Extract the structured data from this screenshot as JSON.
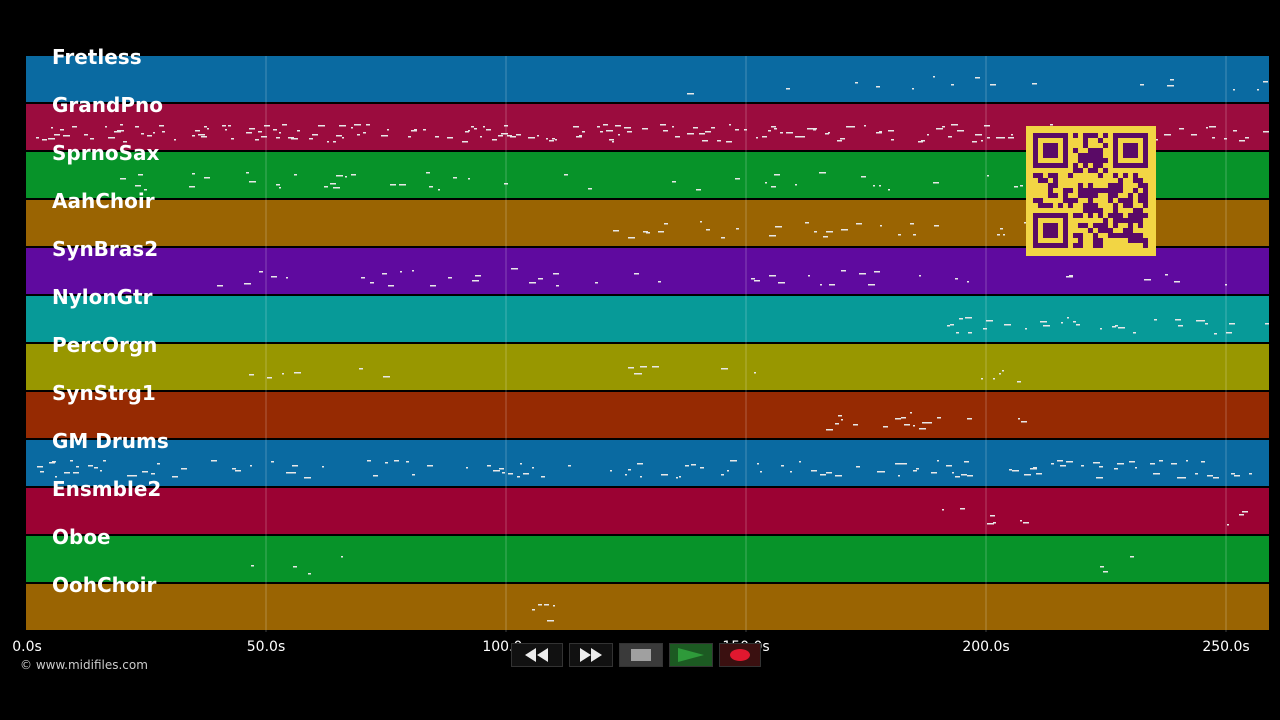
{
  "tracks": [
    {
      "name": "Fretless",
      "color": "#0a6aa1"
    },
    {
      "name": "GrandPno",
      "color": "#9b0c3e"
    },
    {
      "name": "SprnoSax",
      "color": "#079329"
    },
    {
      "name": "AahChoir",
      "color": "#9a6402"
    },
    {
      "name": "SynBras2",
      "color": "#5f0a9f"
    },
    {
      "name": "NylonGtr",
      "color": "#079a98"
    },
    {
      "name": "PercOrgn",
      "color": "#989700"
    },
    {
      "name": "SynStrg1",
      "color": "#962a02"
    },
    {
      "name": "GM Drums",
      "color": "#0a6aa1"
    },
    {
      "name": "Ensmble2",
      "color": "#9b0233"
    },
    {
      "name": "Oboe",
      "color": "#079329"
    },
    {
      "name": "OohChoir",
      "color": "#9a6402"
    }
  ],
  "timeline": {
    "ticks": [
      "0.0s",
      "50.0s",
      "100.0s",
      "150.0s",
      "200.0s",
      "250.0s"
    ]
  },
  "copyright": "© www.midifiles.com",
  "transport": {
    "rewind_icon": "rewind-icon",
    "forward_icon": "fast-forward-icon",
    "stop_icon": "stop-icon",
    "play_icon": "play-icon",
    "record_icon": "record-icon",
    "play_color": "#2e9a3a",
    "record_color": "#e0182f"
  },
  "qr_color": "#f2d544",
  "qr_dark": "#5a0a66"
}
